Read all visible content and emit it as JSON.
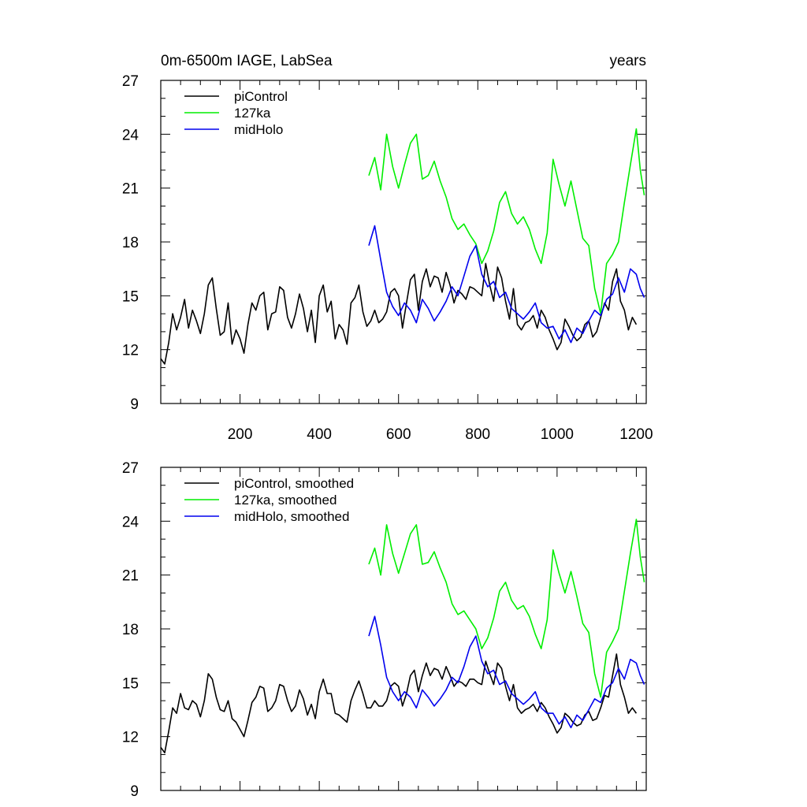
{
  "title_left": "0m-6500m IAGE, LabSea",
  "title_right": "years",
  "colors": {
    "piControl": "#000000",
    "127ka": "#00ee00",
    "midHolo": "#0000ee"
  },
  "chart_data": [
    {
      "type": "line",
      "title": "0m-6500m IAGE, LabSea",
      "ylabel": "years",
      "xlim": [
        0,
        1225
      ],
      "ylim": [
        9,
        27
      ],
      "xticks": [
        200,
        400,
        600,
        800,
        1000,
        1200
      ],
      "xticklabels": [
        "200",
        "400",
        "600",
        "800",
        "1000",
        "1200"
      ],
      "yticks": [
        9,
        12,
        15,
        18,
        21,
        24,
        27
      ],
      "yticklabels": [
        "9",
        "12",
        "15",
        "18",
        "21",
        "24",
        "27"
      ],
      "legend": [
        "piControl",
        "127ka",
        "midHolo"
      ],
      "legend_position": "top-left",
      "series": [
        {
          "name": "piControl",
          "color": "#000000",
          "x": [
            0,
            10,
            20,
            30,
            40,
            50,
            60,
            70,
            80,
            90,
            100,
            110,
            120,
            130,
            140,
            150,
            160,
            170,
            180,
            190,
            200,
            210,
            220,
            230,
            240,
            250,
            260,
            270,
            280,
            290,
            300,
            310,
            320,
            330,
            340,
            350,
            360,
            370,
            380,
            390,
            400,
            410,
            420,
            430,
            440,
            450,
            460,
            470,
            480,
            490,
            500,
            510,
            520,
            530,
            540,
            550,
            560,
            570,
            580,
            590,
            600,
            610,
            620,
            630,
            640,
            650,
            660,
            670,
            680,
            690,
            700,
            710,
            720,
            730,
            740,
            750,
            760,
            770,
            780,
            790,
            800,
            810,
            820,
            830,
            840,
            850,
            860,
            870,
            880,
            890,
            900,
            910,
            920,
            930,
            940,
            950,
            960,
            970,
            980,
            990,
            1000,
            1010,
            1020,
            1030,
            1040,
            1050,
            1060,
            1070,
            1080,
            1090,
            1100,
            1110,
            1120,
            1130,
            1140,
            1150,
            1160,
            1170,
            1180,
            1190,
            1200
          ],
          "y": [
            11.5,
            11.2,
            12.4,
            14.0,
            13.1,
            13.8,
            14.8,
            13.2,
            14.2,
            13.6,
            12.9,
            14.0,
            15.6,
            16.0,
            14.3,
            12.8,
            13.0,
            14.6,
            12.3,
            13.1,
            12.6,
            11.8,
            13.4,
            14.6,
            14.2,
            15.0,
            15.2,
            13.1,
            14.0,
            14.1,
            15.5,
            15.3,
            13.8,
            13.2,
            14.0,
            15.1,
            14.3,
            13.0,
            14.2,
            12.4,
            15.0,
            15.6,
            14.1,
            14.7,
            12.6,
            13.4,
            13.1,
            12.3,
            14.6,
            14.9,
            15.6,
            14.1,
            13.3,
            13.6,
            14.2,
            13.5,
            13.7,
            14.1,
            15.2,
            15.4,
            15.0,
            13.2,
            14.6,
            15.9,
            16.2,
            14.2,
            15.8,
            16.5,
            15.5,
            16.1,
            16.0,
            15.2,
            16.3,
            15.6,
            14.6,
            15.3,
            15.1,
            14.8,
            15.5,
            15.4,
            15.2,
            15.0,
            16.8,
            15.6,
            14.7,
            16.6,
            16.0,
            14.7,
            13.7,
            15.4,
            13.4,
            13.1,
            13.5,
            13.6,
            13.9,
            13.2,
            14.2,
            13.8,
            13.1,
            12.6,
            12.0,
            12.4,
            13.7,
            13.3,
            12.8,
            12.5,
            12.7,
            13.4,
            13.6,
            12.7,
            13.0,
            13.8,
            14.6,
            14.2,
            15.8,
            16.5,
            14.7,
            14.2,
            13.1,
            13.8,
            13.4
          ]
        },
        {
          "name": "127ka",
          "color": "#00ee00",
          "x": [
            525,
            540,
            555,
            570,
            585,
            600,
            615,
            630,
            645,
            660,
            675,
            690,
            705,
            720,
            735,
            750,
            765,
            780,
            795,
            810,
            825,
            840,
            855,
            870,
            885,
            900,
            915,
            930,
            945,
            960,
            975,
            990,
            1005,
            1020,
            1035,
            1050,
            1065,
            1080,
            1095,
            1110,
            1125,
            1140,
            1155,
            1170,
            1185,
            1200,
            1210,
            1220
          ],
          "y": [
            21.7,
            22.7,
            20.9,
            24.0,
            22.2,
            21.0,
            22.3,
            23.5,
            24.0,
            21.5,
            21.7,
            22.5,
            21.4,
            20.5,
            19.3,
            18.7,
            19.0,
            18.4,
            17.9,
            16.8,
            17.5,
            18.6,
            20.2,
            20.8,
            19.6,
            19.0,
            19.4,
            18.7,
            17.6,
            16.8,
            18.5,
            22.6,
            21.2,
            20.0,
            21.4,
            19.8,
            18.2,
            17.8,
            15.4,
            14.0,
            16.8,
            17.3,
            18.0,
            20.2,
            22.3,
            24.3,
            22.0,
            20.6
          ]
        },
        {
          "name": "midHolo",
          "color": "#0000ee",
          "x": [
            525,
            540,
            555,
            570,
            585,
            600,
            615,
            630,
            645,
            660,
            675,
            690,
            705,
            720,
            735,
            750,
            765,
            780,
            795,
            810,
            825,
            840,
            855,
            870,
            885,
            900,
            915,
            930,
            945,
            960,
            975,
            990,
            1005,
            1020,
            1035,
            1050,
            1065,
            1080,
            1095,
            1110,
            1125,
            1140,
            1155,
            1170,
            1185,
            1200,
            1210,
            1220
          ],
          "y": [
            17.8,
            18.9,
            17.0,
            15.2,
            14.4,
            13.9,
            14.6,
            14.2,
            13.5,
            14.8,
            14.3,
            13.6,
            14.1,
            14.7,
            15.5,
            15.0,
            16.1,
            17.2,
            17.8,
            16.2,
            15.5,
            15.8,
            14.9,
            15.2,
            14.3,
            14.0,
            13.7,
            14.1,
            14.6,
            13.5,
            13.2,
            13.3,
            12.6,
            13.1,
            12.4,
            13.2,
            12.9,
            13.6,
            14.2,
            13.9,
            14.8,
            15.1,
            16.0,
            15.2,
            16.5,
            16.2,
            15.4,
            14.9
          ]
        }
      ]
    },
    {
      "type": "line",
      "title": "",
      "xlim": [
        0,
        1225
      ],
      "ylim": [
        9,
        27
      ],
      "yticks": [
        9,
        12,
        15,
        18,
        21,
        24,
        27
      ],
      "yticklabels": [
        "9",
        "12",
        "15",
        "18",
        "21",
        "24",
        "27"
      ],
      "legend": [
        "piControl, smoothed",
        "127ka, smoothed",
        "midHolo, smoothed"
      ],
      "legend_position": "top-left",
      "series": [
        {
          "name": "piControl, smoothed",
          "color": "#000000",
          "x": [
            0,
            10,
            20,
            30,
            40,
            50,
            60,
            70,
            80,
            90,
            100,
            110,
            120,
            130,
            140,
            150,
            160,
            170,
            180,
            190,
            200,
            210,
            220,
            230,
            240,
            250,
            260,
            270,
            280,
            290,
            300,
            310,
            320,
            330,
            340,
            350,
            360,
            370,
            380,
            390,
            400,
            410,
            420,
            430,
            440,
            450,
            460,
            470,
            480,
            490,
            500,
            510,
            520,
            530,
            540,
            550,
            560,
            570,
            580,
            590,
            600,
            610,
            620,
            630,
            640,
            650,
            660,
            670,
            680,
            690,
            700,
            710,
            720,
            730,
            740,
            750,
            760,
            770,
            780,
            790,
            800,
            810,
            820,
            830,
            840,
            850,
            860,
            870,
            880,
            890,
            900,
            910,
            920,
            930,
            940,
            950,
            960,
            970,
            980,
            990,
            1000,
            1010,
            1020,
            1030,
            1040,
            1050,
            1060,
            1070,
            1080,
            1090,
            1100,
            1110,
            1120,
            1130,
            1140,
            1150,
            1160,
            1170,
            1180,
            1190,
            1200
          ],
          "y": [
            11.4,
            11.1,
            12.3,
            13.6,
            13.3,
            14.4,
            13.6,
            13.5,
            14.0,
            13.8,
            13.1,
            14.0,
            15.5,
            15.2,
            14.2,
            13.5,
            13.4,
            14.0,
            13.0,
            12.8,
            12.4,
            12.0,
            12.9,
            13.9,
            14.2,
            14.8,
            14.7,
            13.4,
            13.6,
            14.0,
            14.9,
            14.8,
            14.0,
            13.4,
            13.7,
            14.6,
            14.1,
            13.2,
            13.8,
            13.0,
            14.5,
            15.2,
            14.4,
            14.4,
            13.3,
            13.2,
            13.0,
            12.8,
            14.0,
            14.6,
            15.1,
            14.4,
            13.6,
            13.6,
            14.0,
            13.7,
            13.7,
            14.0,
            14.8,
            15.0,
            14.8,
            13.7,
            14.4,
            15.4,
            15.7,
            14.5,
            15.4,
            16.1,
            15.4,
            15.8,
            15.7,
            15.2,
            15.9,
            15.4,
            14.8,
            15.1,
            15.0,
            14.8,
            15.2,
            15.2,
            15.0,
            14.9,
            16.2,
            15.5,
            14.9,
            16.1,
            15.8,
            14.8,
            14.0,
            14.9,
            13.6,
            13.3,
            13.5,
            13.6,
            13.8,
            13.4,
            13.9,
            13.6,
            13.1,
            12.7,
            12.2,
            12.5,
            13.3,
            13.1,
            12.8,
            12.6,
            12.7,
            13.2,
            13.4,
            12.9,
            13.0,
            13.6,
            14.3,
            14.2,
            15.4,
            16.6,
            14.9,
            14.2,
            13.3,
            13.6,
            13.3
          ]
        },
        {
          "name": "127ka, smoothed",
          "color": "#00ee00",
          "x": [
            525,
            540,
            555,
            570,
            585,
            600,
            615,
            630,
            645,
            660,
            675,
            690,
            705,
            720,
            735,
            750,
            765,
            780,
            795,
            810,
            825,
            840,
            855,
            870,
            885,
            900,
            915,
            930,
            945,
            960,
            975,
            990,
            1005,
            1020,
            1035,
            1050,
            1065,
            1080,
            1095,
            1110,
            1125,
            1140,
            1155,
            1170,
            1185,
            1200,
            1210,
            1220
          ],
          "y": [
            21.6,
            22.5,
            21.0,
            23.8,
            22.2,
            21.1,
            22.2,
            23.3,
            23.8,
            21.6,
            21.7,
            22.3,
            21.4,
            20.6,
            19.4,
            18.8,
            19.0,
            18.5,
            18.0,
            16.9,
            17.5,
            18.6,
            20.1,
            20.6,
            19.6,
            19.1,
            19.3,
            18.7,
            17.7,
            16.9,
            18.5,
            22.4,
            21.1,
            20.0,
            21.2,
            19.8,
            18.3,
            17.8,
            15.5,
            14.2,
            16.7,
            17.3,
            18.0,
            20.1,
            22.2,
            24.1,
            22.0,
            20.6
          ]
        },
        {
          "name": "midHolo, smoothed",
          "color": "#0000ee",
          "x": [
            525,
            540,
            555,
            570,
            585,
            600,
            615,
            630,
            645,
            660,
            675,
            690,
            705,
            720,
            735,
            750,
            765,
            780,
            795,
            810,
            825,
            840,
            855,
            870,
            885,
            900,
            915,
            930,
            945,
            960,
            975,
            990,
            1005,
            1020,
            1035,
            1050,
            1065,
            1080,
            1095,
            1110,
            1125,
            1140,
            1155,
            1170,
            1185,
            1200,
            1210,
            1220
          ],
          "y": [
            17.6,
            18.7,
            17.1,
            15.3,
            14.5,
            14.0,
            14.5,
            14.2,
            13.6,
            14.6,
            14.2,
            13.7,
            14.1,
            14.6,
            15.3,
            15.0,
            15.9,
            17.0,
            17.6,
            16.2,
            15.5,
            15.7,
            14.9,
            15.1,
            14.4,
            14.1,
            13.8,
            14.1,
            14.5,
            13.6,
            13.3,
            13.3,
            12.7,
            13.1,
            12.5,
            13.2,
            12.9,
            13.5,
            14.1,
            13.9,
            14.7,
            15.0,
            15.8,
            15.2,
            16.3,
            16.1,
            15.4,
            14.9
          ]
        }
      ]
    }
  ]
}
